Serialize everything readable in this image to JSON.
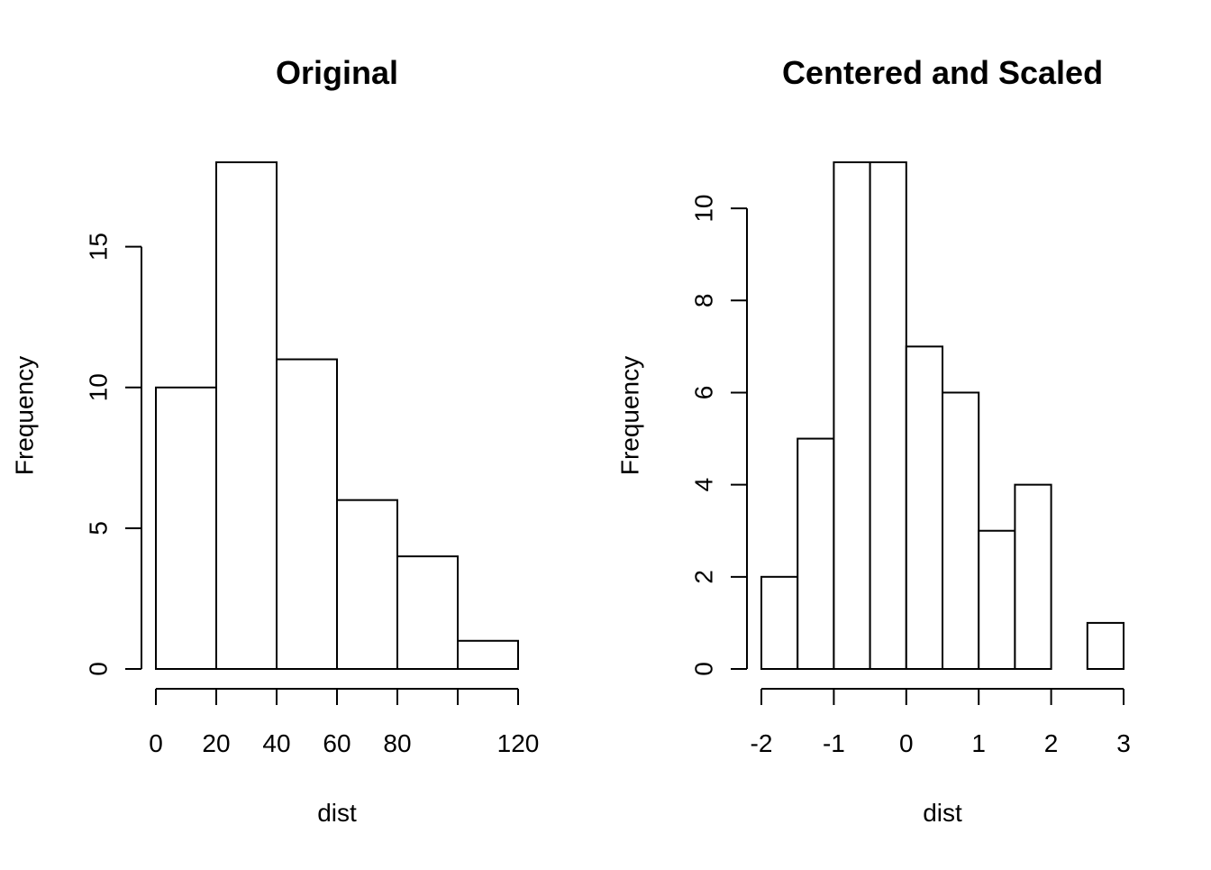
{
  "chart_data": [
    {
      "type": "bar",
      "subtype": "histogram",
      "title": "Original",
      "xlabel": "dist",
      "ylabel": "Frequency",
      "bins": [
        [
          0,
          20
        ],
        [
          20,
          40
        ],
        [
          40,
          60
        ],
        [
          60,
          80
        ],
        [
          80,
          100
        ],
        [
          100,
          120
        ]
      ],
      "values": [
        10,
        18,
        11,
        6,
        4,
        1
      ],
      "xlim": [
        0,
        120
      ],
      "ylim": [
        0,
        18
      ],
      "xticks": [
        0,
        20,
        40,
        60,
        80,
        100,
        120
      ],
      "xtick_labels": [
        "0",
        "20",
        "40",
        "60",
        "80",
        "",
        "120"
      ],
      "yticks": [
        0,
        5,
        10,
        15
      ],
      "ytick_labels": [
        "0",
        "5",
        "10",
        "15"
      ],
      "grid": false
    },
    {
      "type": "bar",
      "subtype": "histogram",
      "title": "Centered and Scaled",
      "xlabel": "dist",
      "ylabel": "Frequency",
      "bins": [
        [
          -2,
          -1.5
        ],
        [
          -1.5,
          -1
        ],
        [
          -1,
          -0.5
        ],
        [
          -0.5,
          0
        ],
        [
          0,
          0.5
        ],
        [
          0.5,
          1
        ],
        [
          1,
          1.5
        ],
        [
          1.5,
          2
        ],
        [
          2,
          2.5
        ],
        [
          2.5,
          3
        ]
      ],
      "values": [
        2,
        5,
        11,
        11,
        7,
        6,
        3,
        4,
        0,
        1
      ],
      "xlim": [
        -2,
        3
      ],
      "ylim": [
        0,
        11
      ],
      "xticks": [
        -2,
        -1,
        0,
        1,
        2,
        3
      ],
      "xtick_labels": [
        "-2",
        "-1",
        "0",
        "1",
        "2",
        "3"
      ],
      "yticks": [
        0,
        2,
        4,
        6,
        8,
        10
      ],
      "ytick_labels": [
        "0",
        "2",
        "4",
        "6",
        "8",
        "10"
      ],
      "grid": false
    }
  ]
}
